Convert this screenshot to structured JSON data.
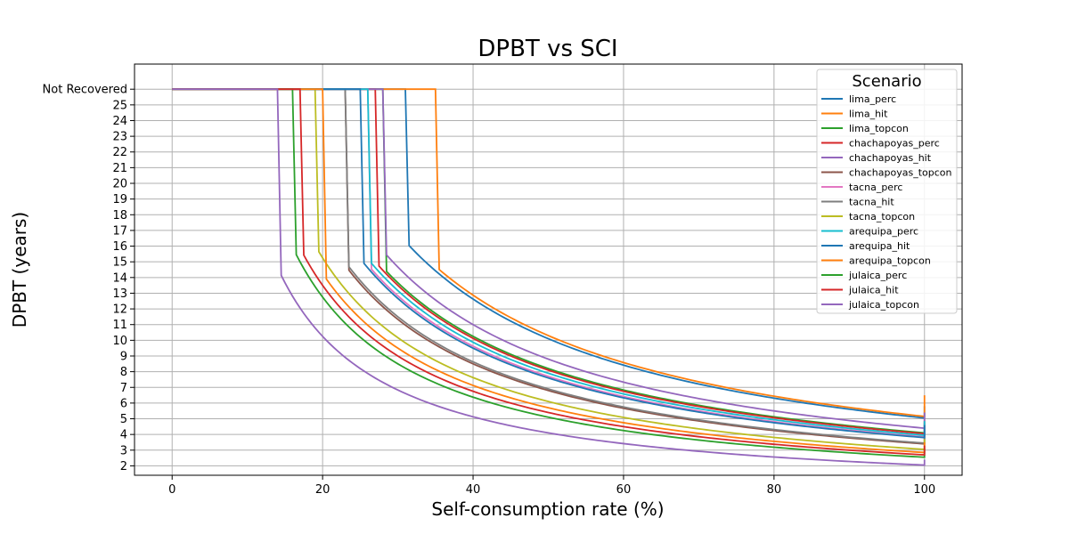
{
  "chart_data": {
    "type": "line",
    "title": "DPBT vs SCI",
    "xlabel": "Self-consumption rate (%)",
    "ylabel": "DPBT (years)",
    "xlim": [
      -5,
      105
    ],
    "ylim": [
      1.4,
      27.6
    ],
    "x_ticks": [
      0,
      20,
      40,
      60,
      80,
      100
    ],
    "x_tick_labels": [
      "0",
      "20",
      "40",
      "60",
      "80",
      "100"
    ],
    "y_ticks": [
      2,
      3,
      4,
      5,
      6,
      7,
      8,
      9,
      10,
      11,
      12,
      13,
      14,
      15,
      16,
      17,
      18,
      19,
      20,
      21,
      22,
      23,
      24,
      25,
      26
    ],
    "y_tick_labels": [
      "2",
      "3",
      "4",
      "5",
      "6",
      "7",
      "8",
      "9",
      "10",
      "11",
      "12",
      "13",
      "14",
      "15",
      "16",
      "17",
      "18",
      "19",
      "20",
      "21",
      "22",
      "23",
      "24",
      "25",
      "Not Recovered"
    ],
    "not_recovered_value": 26,
    "grid": true,
    "legend": {
      "title": "Scenario",
      "placement": "top-right"
    },
    "series": [
      {
        "name": "lima_perc",
        "color": "#1f77b4",
        "curve_k": 505,
        "last_recovered_x": 31,
        "end": [
          100,
          5.8
        ]
      },
      {
        "name": "lima_hit",
        "color": "#ff7f0e",
        "curve_k": 515,
        "last_recovered_x": 35,
        "end": [
          100,
          6.5
        ]
      },
      {
        "name": "lima_topcon",
        "color": "#2ca02c",
        "curve_k": 410,
        "last_recovered_x": 28,
        "end": [
          100,
          4.75
        ]
      },
      {
        "name": "chachapoyas_perc",
        "color": "#d62728",
        "curve_k": 405,
        "last_recovered_x": 27,
        "end": [
          100,
          4.95
        ]
      },
      {
        "name": "chachapoyas_hit",
        "color": "#9467bd",
        "curve_k": 440,
        "last_recovered_x": 28,
        "end": [
          100,
          5.4
        ]
      },
      {
        "name": "chachapoyas_topcon",
        "color": "#8c564b",
        "curve_k": 340,
        "last_recovered_x": 23,
        "end": [
          100,
          4.15
        ]
      },
      {
        "name": "tacna_perc",
        "color": "#e377c2",
        "curve_k": 385,
        "last_recovered_x": 26,
        "end": [
          100,
          4.8
        ]
      },
      {
        "name": "tacna_hit",
        "color": "#7f7f7f",
        "curve_k": 345,
        "last_recovered_x": 23,
        "end": [
          100,
          4.25
        ]
      },
      {
        "name": "tacna_topcon",
        "color": "#bcbd22",
        "curve_k": 305,
        "last_recovered_x": 19,
        "end": [
          100,
          3.7
        ]
      },
      {
        "name": "arequipa_perc",
        "color": "#17becf",
        "curve_k": 395,
        "last_recovered_x": 26,
        "end": [
          100,
          4.85
        ]
      },
      {
        "name": "arequipa_hit",
        "color": "#1f77b4",
        "curve_k": 380,
        "last_recovered_x": 25,
        "end": [
          100,
          4.6
        ]
      },
      {
        "name": "arequipa_topcon",
        "color": "#ff7f0e",
        "curve_k": 285,
        "last_recovered_x": 20,
        "end": [
          100,
          3.5
        ]
      },
      {
        "name": "julaica_perc",
        "color": "#2ca02c",
        "curve_k": 255,
        "last_recovered_x": 16,
        "end": [
          100,
          3.1
        ]
      },
      {
        "name": "julaica_hit",
        "color": "#d62728",
        "curve_k": 270,
        "last_recovered_x": 17,
        "end": [
          100,
          3.3
        ]
      },
      {
        "name": "julaica_topcon",
        "color": "#9467bd",
        "curve_k": 205,
        "last_recovered_x": 14,
        "end": [
          100,
          2.4
        ]
      }
    ]
  }
}
